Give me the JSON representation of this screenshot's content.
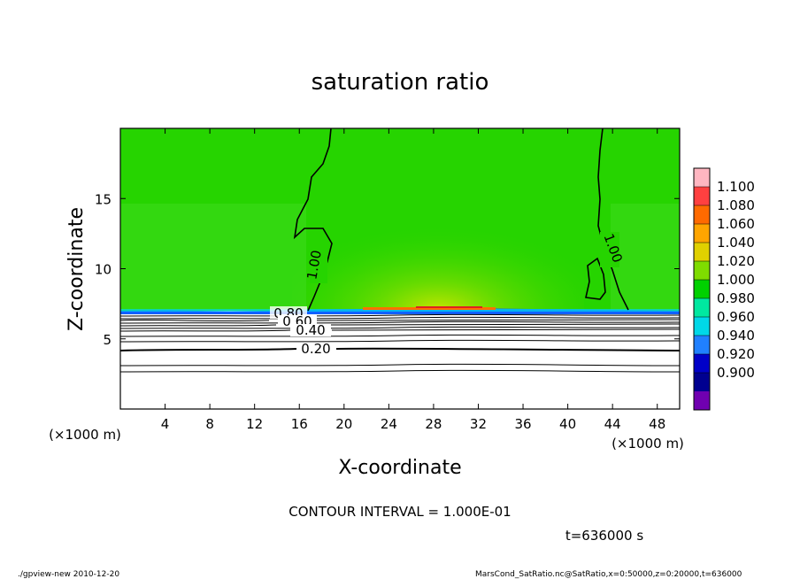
{
  "chart_data": {
    "type": "heatmap",
    "title": "saturation ratio",
    "xlabel": "X-coordinate",
    "ylabel": "Z-coordinate",
    "x_unit_left": "(×1000 m)",
    "x_unit_right": "(×1000 m)",
    "xlim": [
      0,
      50
    ],
    "ylim": [
      0,
      20
    ],
    "x_ticks": [
      4,
      8,
      12,
      16,
      20,
      24,
      28,
      32,
      36,
      40,
      44,
      48
    ],
    "y_ticks": [
      5,
      10,
      15
    ],
    "colorbar": {
      "levels": [
        "1.100",
        "1.080",
        "1.060",
        "1.040",
        "1.020",
        "1.000",
        "0.980",
        "0.960",
        "0.940",
        "0.920",
        "0.900"
      ],
      "colors": [
        "#ffb6c1",
        "#ff4040",
        "#ff6a00",
        "#ffa500",
        "#e0d000",
        "#7fdc00",
        "#00d100",
        "#00e8a0",
        "#00d8e8",
        "#2080ff",
        "#0000c8",
        "#000090",
        "#7000b0"
      ]
    },
    "contour_labels": [
      "1.00",
      "1.00",
      "0.80",
      "0.60",
      "0.40",
      "0.20"
    ],
    "contour_interval_text": "CONTOUR INTERVAL = 1.000E-01",
    "time_text": "t=636000 s"
  },
  "footer": {
    "left": "./gpview-new   2010-12-20",
    "right": "MarsCond_SatRatio.nc@SatRatio,x=0:50000,z=0:20000,t=636000"
  }
}
